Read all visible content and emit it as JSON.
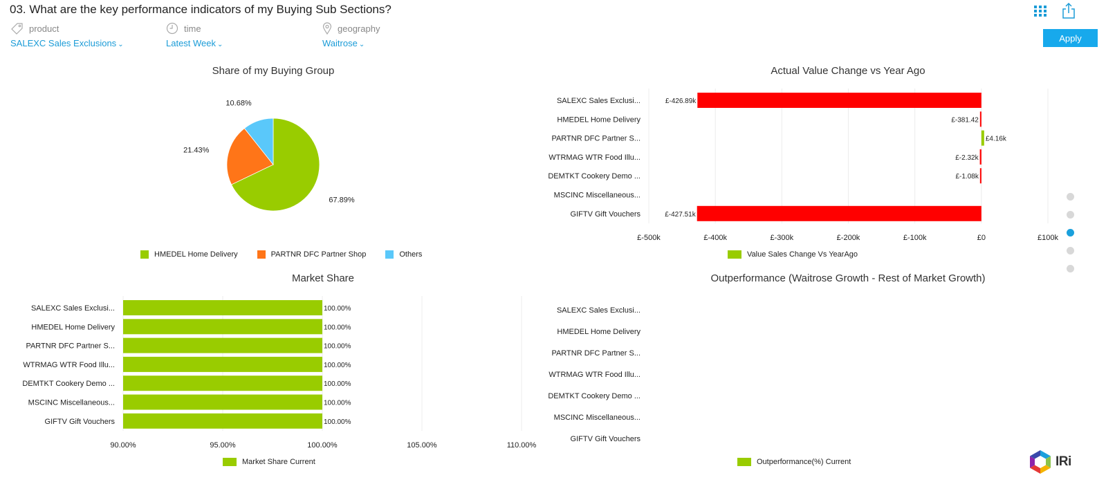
{
  "title": "03. What are the key performance indicators of my Buying Sub Sections?",
  "filters": [
    {
      "label": "product",
      "value": "SALEXC Sales Exclusions",
      "icon": "tag-icon"
    },
    {
      "label": "time",
      "value": "Latest Week",
      "icon": "clock-icon"
    },
    {
      "label": "geography",
      "value": "Waitrose",
      "icon": "location-pin-icon"
    }
  ],
  "apply_label": "Apply",
  "toolbar_icons": [
    "grid-menu-icon",
    "share-icon"
  ],
  "colors": {
    "green": "#99cc00",
    "orange": "#ff7518",
    "blue": "#5ac8fa",
    "red": "#ff0000",
    "accent": "#17a9ec"
  },
  "brand": {
    "name": "IRi"
  },
  "pager": {
    "count": 5,
    "active": 2
  },
  "chart_data": [
    {
      "type": "pie",
      "title": "Share of my Buying Group",
      "slices": [
        {
          "name": "HMEDEL Home Delivery",
          "value": 67.89,
          "label": "67.89%",
          "color": "#99cc00"
        },
        {
          "name": "PARTNR DFC Partner Shop",
          "value": 21.43,
          "label": "21.43%",
          "color": "#ff7518"
        },
        {
          "name": "Others",
          "value": 10.68,
          "label": "10.68%",
          "color": "#5ac8fa"
        }
      ],
      "legend": [
        "HMEDEL Home Delivery",
        "PARTNR DFC Partner Shop",
        "Others"
      ],
      "legend_position": "bottom"
    },
    {
      "type": "bar",
      "orientation": "horizontal",
      "title": "Actual Value Change vs Year Ago",
      "categories": [
        "SALEXC Sales Exclusi...",
        "HMEDEL Home Delivery",
        "PARTNR DFC Partner S...",
        "WTRMAG WTR Food Illu...",
        "DEMTKT Cookery Demo ...",
        "MSCINC Miscellaneous...",
        "GIFTV Gift Vouchers"
      ],
      "series": [
        {
          "name": "Value Sales Change Vs YearAgo",
          "values": [
            -426890,
            -381.42,
            4160,
            -2320,
            -1080,
            null,
            -427510
          ]
        }
      ],
      "data_labels": [
        "£-426.89k",
        "£-381.42",
        "£4.16k",
        "£-2.32k",
        "£-1.08k",
        "",
        "£-427.51k"
      ],
      "xlim": [
        -500000,
        100000
      ],
      "xticks": [
        -500000,
        -400000,
        -300000,
        -200000,
        -100000,
        0,
        100000
      ],
      "tick_labels": [
        "£-500k",
        "£-400k",
        "£-300k",
        "£-200k",
        "£-100k",
        "£0",
        "£100k"
      ],
      "grid": true,
      "legend_position": "bottom"
    },
    {
      "type": "bar",
      "orientation": "horizontal",
      "title": "Market Share",
      "categories": [
        "SALEXC Sales Exclusi...",
        "HMEDEL Home Delivery",
        "PARTNR DFC Partner S...",
        "WTRMAG WTR Food Illu...",
        "DEMTKT Cookery Demo ...",
        "MSCINC Miscellaneous...",
        "GIFTV Gift Vouchers"
      ],
      "series": [
        {
          "name": "Market Share Current",
          "values": [
            100,
            100,
            100,
            100,
            100,
            100,
            100
          ]
        }
      ],
      "data_labels": [
        "100.00%",
        "100.00%",
        "100.00%",
        "100.00%",
        "100.00%",
        "100.00%",
        "100.00%"
      ],
      "xlim": [
        90,
        110
      ],
      "xticks": [
        90,
        95,
        100,
        105,
        110
      ],
      "tick_labels": [
        "90.00%",
        "95.00%",
        "100.00%",
        "105.00%",
        "110.00%"
      ],
      "grid": true,
      "legend_position": "bottom"
    },
    {
      "type": "bar",
      "orientation": "horizontal",
      "title": "Outperformance (Waitrose Growth - Rest of Market Growth)",
      "categories": [
        "SALEXC Sales Exclusi...",
        "HMEDEL Home Delivery",
        "PARTNR DFC Partner S...",
        "WTRMAG WTR Food Illu...",
        "DEMTKT Cookery Demo ...",
        "MSCINC Miscellaneous...",
        "GIFTV Gift Vouchers"
      ],
      "series": [
        {
          "name": "Outperformance(%) Current",
          "values": [
            null,
            null,
            null,
            null,
            null,
            null,
            null
          ]
        }
      ],
      "legend_position": "bottom"
    }
  ]
}
